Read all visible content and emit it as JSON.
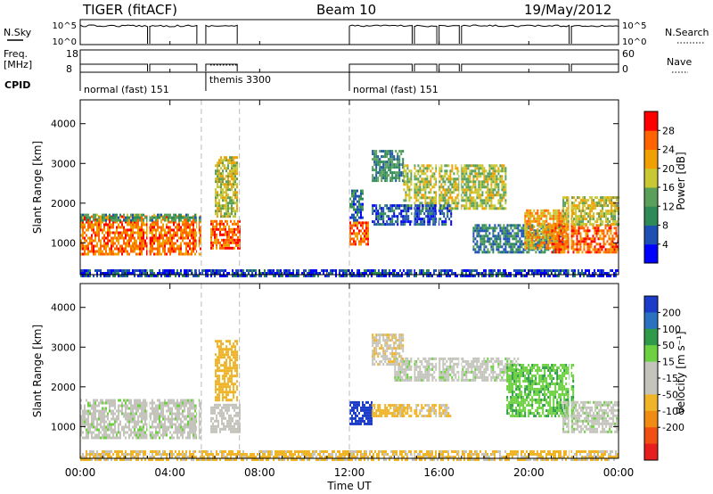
{
  "header": {
    "station": "TIGER (fitACF)",
    "beam": "Beam 10",
    "date": "19/May/2012"
  },
  "top_panels": {
    "nsky_label": "N.Sky",
    "nsky_ticks": [
      "10^5",
      "10^0"
    ],
    "nsearch_label": "N.Search",
    "nsearch_ticks": [
      "10^5",
      "10^0"
    ],
    "freq_label_1": "Freq.",
    "freq_label_2": "[MHz]",
    "freq_ticks": [
      "18",
      "8"
    ],
    "nave_label": "Nave",
    "nave_ticks": [
      "60",
      "0"
    ],
    "cpid_label": "CPID",
    "cpid_segments": [
      {
        "label": "normal (fast) 151",
        "start": 0,
        "end": 5.4
      },
      {
        "label": "themis 3300",
        "start": 5.6,
        "end": 7.1
      },
      {
        "label": "normal (fast) 151",
        "start": 12.0,
        "end": 24.0
      }
    ]
  },
  "colors": {
    "power_scale": [
      "#0000ff",
      "#1e50b4",
      "#2e8b57",
      "#5aa05a",
      "#c8c832",
      "#f0a000",
      "#ff6400",
      "#ff0000"
    ],
    "velocity_scale": [
      "#1a3cc8",
      "#2a72c0",
      "#2e9a4a",
      "#6cd040",
      "#c4c4bc",
      "#c4c4bc",
      "#f0b428",
      "#f08c14",
      "#f05014",
      "#e61e1e"
    ]
  },
  "chart_data": [
    {
      "type": "heatmap",
      "name": "power",
      "xlabel": "",
      "ylabel": "Slant Range [km]",
      "xlim": [
        0,
        24
      ],
      "ylim": [
        200,
        4600
      ],
      "yticks": [
        "1000",
        "2000",
        "3000",
        "4000"
      ],
      "colorbar_label": "Power [dB]",
      "colorbar_ticks": [
        "4",
        "8",
        "12",
        "16",
        "20",
        "24",
        "28"
      ],
      "colorbar_range": [
        0,
        32
      ],
      "patches": [
        {
          "t0": 0.0,
          "t1": 5.4,
          "r0": 750,
          "r1": 1750,
          "v": 25
        },
        {
          "t0": 0.0,
          "t1": 5.4,
          "r0": 1600,
          "r1": 1800,
          "v": 12
        },
        {
          "t0": 5.8,
          "t1": 7.1,
          "r0": 900,
          "r1": 1600,
          "v": 26
        },
        {
          "t0": 6.0,
          "t1": 7.0,
          "r0": 1700,
          "r1": 3200,
          "v": 18
        },
        {
          "t0": 12.0,
          "t1": 12.8,
          "r0": 1000,
          "r1": 1600,
          "v": 26
        },
        {
          "t0": 12.0,
          "t1": 12.6,
          "r0": 1600,
          "r1": 2400,
          "v": 8
        },
        {
          "t0": 13.0,
          "t1": 14.4,
          "r0": 2600,
          "r1": 3400,
          "v": 10
        },
        {
          "t0": 14.4,
          "t1": 19.0,
          "r0": 1900,
          "r1": 3000,
          "v": 17
        },
        {
          "t0": 13.0,
          "t1": 16.5,
          "r0": 1500,
          "r1": 2000,
          "v": 6
        },
        {
          "t0": 17.5,
          "t1": 21.5,
          "r0": 800,
          "r1": 1500,
          "v": 9
        },
        {
          "t0": 19.8,
          "t1": 22.0,
          "r0": 900,
          "r1": 1900,
          "v": 22
        },
        {
          "t0": 21.0,
          "t1": 24.0,
          "r0": 800,
          "r1": 1500,
          "v": 26
        },
        {
          "t0": 21.5,
          "t1": 24.0,
          "r0": 1500,
          "r1": 2200,
          "v": 18
        },
        {
          "t0": 0.0,
          "t1": 24.0,
          "r0": 200,
          "r1": 400,
          "v": 5
        }
      ]
    },
    {
      "type": "heatmap",
      "name": "velocity",
      "xlabel": "Time UT",
      "ylabel": "Slant Range [km]",
      "xlim": [
        0,
        24
      ],
      "ylim": [
        200,
        4600
      ],
      "xticks": [
        "00:00",
        "04:00",
        "08:00",
        "12:00",
        "16:00",
        "20:00",
        "00:00"
      ],
      "yticks": [
        "1000",
        "2000",
        "3000",
        "4000"
      ],
      "colorbar_label": "Velocity [m s⁻¹]",
      "colorbar_ticks": [
        "200",
        "100",
        "50",
        "15",
        "-15",
        "-50",
        "-100",
        "-200"
      ],
      "patches": [
        {
          "t0": 0.0,
          "t1": 5.4,
          "r0": 750,
          "r1": 1750,
          "v": 0
        },
        {
          "t0": 5.8,
          "t1": 7.1,
          "r0": 900,
          "r1": 1600,
          "v": -30
        },
        {
          "t0": 6.0,
          "t1": 7.0,
          "r0": 1700,
          "r1": 3200,
          "v": -80
        },
        {
          "t0": 12.0,
          "t1": 13.0,
          "r0": 1100,
          "r1": 1700,
          "v": 220
        },
        {
          "t0": 13.0,
          "t1": 14.5,
          "r0": 1300,
          "r1": 1600,
          "v": -70
        },
        {
          "t0": 14.0,
          "t1": 16.5,
          "r0": 1300,
          "r1": 1600,
          "v": -60
        },
        {
          "t0": 14.0,
          "t1": 19.5,
          "r0": 2200,
          "r1": 2800,
          "v": 0
        },
        {
          "t0": 13.0,
          "t1": 14.4,
          "r0": 2600,
          "r1": 3400,
          "v": -40
        },
        {
          "t0": 19.0,
          "t1": 22.0,
          "r0": 1300,
          "r1": 2600,
          "v": 40
        },
        {
          "t0": 21.5,
          "t1": 24.0,
          "r0": 900,
          "r1": 1700,
          "v": 0
        },
        {
          "t0": 0.0,
          "t1": 24.0,
          "r0": 200,
          "r1": 450,
          "v": -60
        }
      ]
    }
  ]
}
